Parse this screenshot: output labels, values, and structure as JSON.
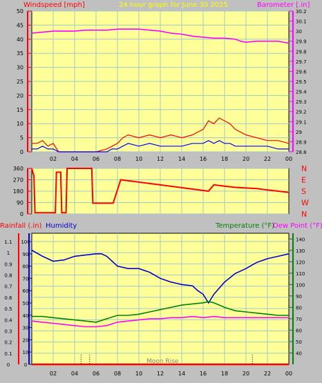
{
  "header": {
    "left_label": "Windspeed [mph]",
    "title": "24 hour graph for   June 30 2025",
    "right_label": "Barometer [.in]"
  },
  "colors": {
    "background": "#c0c0c0",
    "plot_bg": "#ffff99",
    "grid": "#a0c8c8",
    "wind": "#ff0000",
    "gust": "#ff0000",
    "wind_avg": "#0000ff",
    "wind_green": "#008000",
    "barometer": "#ff00ff",
    "direction": "#ff0000",
    "humidity": "#0000cc",
    "temperature": "#008000",
    "dew_point": "#ff00ff",
    "rainfall": "#ff0000",
    "time_axis": "#0000ff"
  },
  "time_ticks": [
    "02",
    "04",
    "06",
    "08",
    "10",
    "12",
    "14",
    "16",
    "18",
    "20",
    "22",
    "00"
  ],
  "chart_data": [
    {
      "type": "line",
      "panel": "wind_barometer",
      "x_unit": "hours",
      "xlim": [
        0,
        24
      ],
      "left_axis": {
        "label": "Windspeed [mph]",
        "ylim": [
          0,
          50
        ],
        "ticks": [
          0,
          5,
          10,
          15,
          20,
          25,
          30,
          35,
          40,
          45,
          50
        ]
      },
      "right_axis": {
        "label": "Barometer [.in]",
        "ylim": [
          28.8,
          30.2
        ],
        "ticks": [
          "28.8",
          "28.9",
          "29",
          "29.1",
          "29.2",
          "29.3",
          "29.4",
          "29.5",
          "29.6",
          "29.7",
          "29.8",
          "29.9",
          "30",
          "30.1",
          "30.2"
        ]
      },
      "series": [
        {
          "name": "Barometer",
          "axis": "right",
          "x": [
            0,
            1,
            2,
            3,
            4,
            5,
            6,
            7,
            8,
            9,
            10,
            11,
            12,
            13,
            14,
            15,
            16,
            17,
            18,
            19,
            19.5,
            20,
            21,
            22,
            23,
            24
          ],
          "values": [
            29.98,
            29.99,
            30.0,
            30.0,
            30.0,
            30.01,
            30.01,
            30.01,
            30.02,
            30.02,
            30.02,
            30.01,
            30.0,
            29.98,
            29.97,
            29.95,
            29.94,
            29.93,
            29.93,
            29.92,
            29.9,
            29.89,
            29.9,
            29.9,
            29.9,
            29.88
          ]
        },
        {
          "name": "Wind Gust",
          "axis": "left",
          "x": [
            0,
            0.5,
            1,
            1.5,
            2,
            2.5,
            3,
            4,
            5,
            6,
            7,
            7.5,
            8,
            8.5,
            9,
            10,
            11,
            12,
            13,
            14,
            15,
            15.5,
            16,
            16.5,
            17,
            17.5,
            18,
            18.5,
            19,
            20,
            21,
            22,
            23,
            24
          ],
          "values": [
            3,
            3,
            4,
            2,
            3,
            0,
            0,
            0,
            0,
            0,
            1,
            2,
            3,
            5,
            6,
            5,
            6,
            5,
            6,
            5,
            6,
            7,
            8,
            11,
            10,
            12,
            11,
            10,
            8,
            6,
            5,
            4,
            4,
            3
          ]
        },
        {
          "name": "Wind Speed",
          "axis": "left",
          "x": [
            0,
            0.5,
            1,
            1.5,
            2,
            2.5,
            3,
            4,
            5,
            6,
            7,
            7.5,
            8,
            8.5,
            9,
            10,
            11,
            12,
            13,
            14,
            15,
            15.5,
            16,
            16.5,
            17,
            17.5,
            18,
            18.5,
            19,
            20,
            21,
            22,
            23,
            24
          ],
          "values": [
            1,
            1,
            2,
            1,
            1,
            0,
            0,
            0,
            0,
            0,
            0,
            1,
            1,
            2,
            3,
            2,
            3,
            2,
            2,
            2,
            3,
            3,
            3,
            4,
            3,
            4,
            3,
            3,
            2,
            2,
            2,
            2,
            1,
            1
          ]
        }
      ]
    },
    {
      "type": "line",
      "panel": "wind_direction",
      "x_unit": "hours",
      "xlim": [
        0,
        24
      ],
      "ylim": [
        0,
        360
      ],
      "ticks": [
        0,
        90,
        180,
        270,
        360
      ],
      "tick_labels": [
        "0",
        "90",
        "180",
        "270",
        "360"
      ],
      "right_labels": [
        "N",
        "W",
        "S",
        "E",
        "N"
      ],
      "series": [
        {
          "name": "Wind Direction",
          "x": [
            0,
            0.2,
            0.3,
            0.4,
            2.2,
            2.3,
            2.7,
            2.8,
            3.2,
            3.3,
            5.6,
            5.7,
            7.5,
            7.6,
            8.3,
            16.5,
            16.7,
            17,
            18,
            19,
            20,
            21,
            22,
            23,
            24
          ],
          "values": [
            360,
            300,
            10,
            10,
            10,
            330,
            330,
            10,
            10,
            360,
            360,
            85,
            85,
            85,
            270,
            180,
            200,
            230,
            220,
            210,
            205,
            200,
            190,
            180,
            170
          ]
        }
      ]
    },
    {
      "type": "line",
      "panel": "temp_humidity_rain",
      "x_unit": "hours",
      "xlim": [
        0,
        24
      ],
      "left_outer_axis": {
        "label": "Rainfall (.in)",
        "ylim": [
          0,
          1.1
        ],
        "ticks": [
          "0",
          "0.1",
          "0.2",
          "0.3",
          "0.4",
          "0.5",
          "0.6",
          "0.7",
          "0.8",
          "0.9",
          "1",
          "1.1"
        ]
      },
      "left_inner_axis": {
        "label": "Humidity",
        "ylim": [
          0,
          100
        ],
        "ticks": [
          "0",
          "10",
          "20",
          "30",
          "40",
          "50",
          "60",
          "70",
          "80",
          "90",
          "100"
        ]
      },
      "right_axis": {
        "labels": [
          "Temperature (°F)",
          "Dew Point (°F)"
        ],
        "ylim": [
          30,
          145
        ],
        "ticks": [
          "40",
          "50",
          "60",
          "70",
          "80",
          "90",
          "100",
          "110",
          "120",
          "130",
          "140"
        ]
      },
      "annotation": "Moon Rise",
      "series": [
        {
          "name": "Humidity",
          "axis": "left_inner",
          "x": [
            0,
            1,
            2,
            3,
            4,
            5,
            6,
            6.5,
            7,
            8,
            9,
            10,
            11,
            12,
            13,
            14,
            15,
            15.5,
            16,
            16.5,
            17,
            18,
            19,
            20,
            21,
            22,
            23,
            24
          ],
          "values": [
            93,
            88,
            84,
            85,
            88,
            89,
            90,
            90,
            88,
            80,
            78,
            78,
            75,
            70,
            67,
            65,
            64,
            60,
            57,
            50,
            57,
            67,
            74,
            78,
            83,
            86,
            88,
            90
          ]
        },
        {
          "name": "Temperature",
          "axis": "right",
          "x": [
            0,
            1,
            2,
            3,
            4,
            5,
            6,
            7,
            8,
            9,
            10,
            11,
            12,
            13,
            14,
            15,
            16,
            16.5,
            17,
            18,
            19,
            20,
            21,
            22,
            23,
            24
          ],
          "values": [
            72,
            72,
            71,
            70,
            69,
            68,
            67,
            70,
            73,
            73,
            74,
            76,
            78,
            80,
            82,
            83,
            84,
            85,
            84,
            80,
            77,
            76,
            75,
            74,
            73,
            73
          ]
        },
        {
          "name": "Dew Point",
          "axis": "right",
          "x": [
            0,
            1,
            2,
            3,
            4,
            5,
            6,
            7,
            8,
            9,
            10,
            11,
            12,
            13,
            14,
            15,
            16,
            17,
            18,
            19,
            20,
            21,
            22,
            23,
            24
          ],
          "values": [
            68,
            67,
            66,
            65,
            64,
            63,
            63,
            64,
            67,
            68,
            69,
            70,
            70,
            71,
            71,
            72,
            71,
            72,
            71,
            71,
            71,
            71,
            71,
            71,
            71
          ]
        },
        {
          "name": "Rainfall",
          "axis": "left_outer",
          "x": [
            0,
            24
          ],
          "values": [
            0,
            0
          ]
        }
      ]
    }
  ]
}
